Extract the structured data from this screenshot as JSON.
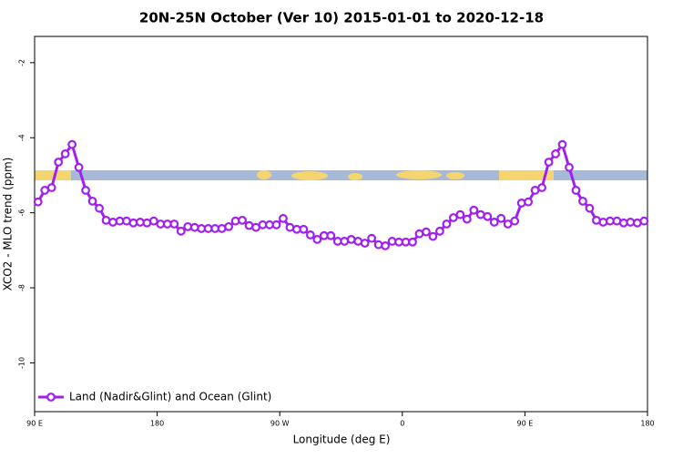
{
  "chart_data": {
    "type": "line",
    "title": "20N-25N October (Ver 10)   2015-01-01 to 2020-12-18",
    "x_label": "Longitude (deg E)",
    "y_label": "XCO2 - MLO trend (ppm)",
    "x": [
      92.5,
      97.5,
      102.5,
      107.5,
      112.5,
      117.5,
      122.5,
      127.5,
      132.5,
      137.5,
      142.5,
      147.5,
      152.5,
      157.5,
      162.5,
      167.5,
      172.5,
      177.5,
      182.5,
      187.5,
      192.5,
      197.5,
      202.5,
      207.5,
      212.5,
      217.5,
      222.5,
      227.5,
      232.5,
      237.5,
      242.5,
      247.5,
      252.5,
      257.5,
      262.5,
      267.5,
      272.5,
      277.5,
      282.5,
      287.5,
      292.5,
      297.5,
      302.5,
      307.5,
      312.5,
      317.5,
      322.5,
      327.5,
      332.5,
      337.5,
      342.5,
      347.5,
      352.5,
      357.5,
      362.5,
      367.5,
      372.5,
      377.5,
      382.5,
      387.5,
      392.5,
      397.5,
      402.5,
      407.5,
      412.5,
      417.5,
      422.5,
      427.5,
      432.5,
      437.5,
      442.5,
      447.5,
      452.5,
      457.5,
      462.5,
      467.5,
      472.5,
      477.5,
      482.5,
      487.5,
      492.5,
      497.5,
      502.5,
      507.5,
      512.5,
      517.5,
      522.5,
      527.5,
      532.5,
      537.5
    ],
    "series": [
      {
        "name": "Land (Nadir&Glint) and Ocean (Glint)",
        "color": "#a020f0",
        "values": [
          -5.71,
          -5.4,
          -5.33,
          -4.65,
          -4.43,
          -4.18,
          -4.79,
          -5.4,
          -5.69,
          -5.88,
          -6.2,
          -6.25,
          -6.22,
          -6.22,
          -6.27,
          -6.25,
          -6.27,
          -6.22,
          -6.3,
          -6.3,
          -6.3,
          -6.49,
          -6.37,
          -6.39,
          -6.42,
          -6.42,
          -6.42,
          -6.42,
          -6.37,
          -6.22,
          -6.2,
          -6.34,
          -6.39,
          -6.32,
          -6.32,
          -6.32,
          -6.15,
          -6.39,
          -6.44,
          -6.44,
          -6.59,
          -6.71,
          -6.61,
          -6.61,
          -6.76,
          -6.76,
          -6.71,
          -6.76,
          -6.81,
          -6.68,
          -6.85,
          -6.88,
          -6.76,
          -6.78,
          -6.78,
          -6.78,
          -6.56,
          -6.51,
          -6.63,
          -6.49,
          -6.3,
          -6.13,
          -6.05,
          -6.17,
          -5.93,
          -6.05,
          -6.1,
          -6.25,
          -6.15,
          -6.3,
          -6.22,
          -5.74,
          -5.71,
          -5.4,
          -5.33,
          -4.65,
          -4.43,
          -4.18,
          -4.79,
          -5.4,
          -5.69,
          -5.88,
          -6.2,
          -6.25,
          -6.22,
          -6.22,
          -6.27,
          -6.25,
          -6.27,
          -6.22
        ]
      }
    ],
    "xlim": [
      90,
      540
    ],
    "xticks": [
      {
        "value": 90,
        "label": "90 E"
      },
      180,
      {
        "value": 270,
        "label": "90 W"
      },
      {
        "value": 360,
        "label": "0"
      },
      {
        "value": 450,
        "label": "90 E"
      },
      180.0001
    ],
    "ylim": [
      -11.3,
      -1.3
    ],
    "yticks": [
      -2,
      -4,
      -6,
      -8,
      -10
    ],
    "legend": "bottom-left"
  }
}
